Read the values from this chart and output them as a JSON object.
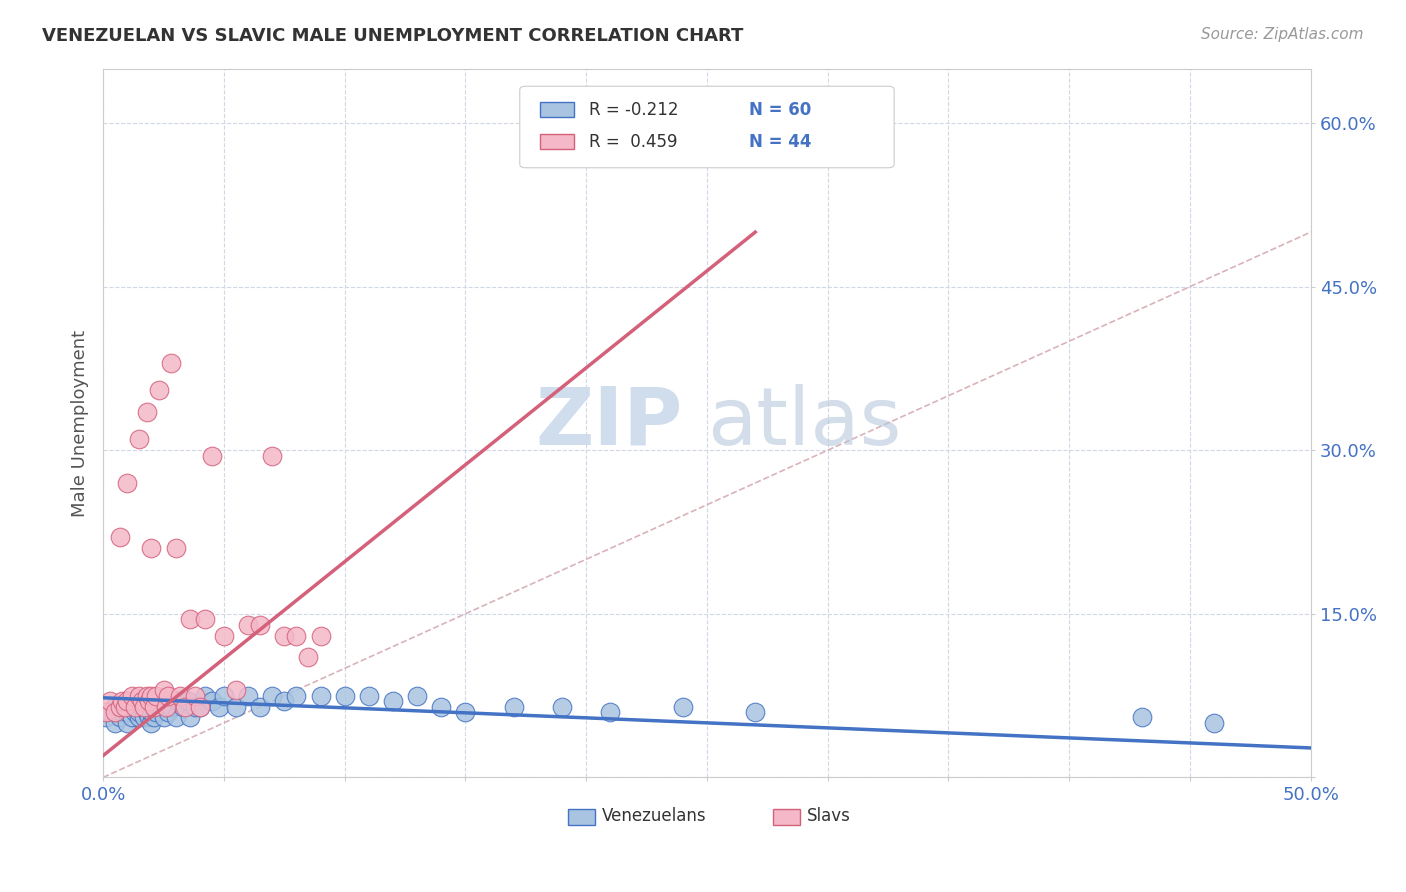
{
  "title": "VENEZUELAN VS SLAVIC MALE UNEMPLOYMENT CORRELATION CHART",
  "source": "Source: ZipAtlas.com",
  "ylabel": "Male Unemployment",
  "xlim": [
    0.0,
    0.5
  ],
  "ylim": [
    0.0,
    0.65
  ],
  "x_ticks": [
    0.0,
    0.05,
    0.1,
    0.15,
    0.2,
    0.25,
    0.3,
    0.35,
    0.4,
    0.45,
    0.5
  ],
  "y_ticks": [
    0.0,
    0.15,
    0.3,
    0.45,
    0.6
  ],
  "venezuelan_color": "#a8c4e0",
  "slavic_color": "#f4b8c8",
  "venezuelan_line_color": "#4472c4",
  "slavic_line_color": "#d4607a",
  "diagonal_color": "#d0a0a8",
  "watermark_zip": "ZIP",
  "watermark_atlas": "atlas",
  "legend_R_venezuelan": "R = -0.212",
  "legend_N_venezuelan": "N = 60",
  "legend_R_slavic": "R =  0.459",
  "legend_N_slavic": "N = 44",
  "venezuelan_x": [
    0.001,
    0.003,
    0.005,
    0.005,
    0.007,
    0.008,
    0.01,
    0.01,
    0.01,
    0.01,
    0.012,
    0.013,
    0.014,
    0.015,
    0.015,
    0.016,
    0.017,
    0.018,
    0.018,
    0.019,
    0.02,
    0.02,
    0.021,
    0.022,
    0.023,
    0.025,
    0.025,
    0.027,
    0.028,
    0.03,
    0.031,
    0.033,
    0.035,
    0.036,
    0.038,
    0.04,
    0.042,
    0.045,
    0.048,
    0.05,
    0.055,
    0.06,
    0.065,
    0.07,
    0.075,
    0.08,
    0.09,
    0.1,
    0.11,
    0.12,
    0.13,
    0.14,
    0.15,
    0.17,
    0.19,
    0.21,
    0.24,
    0.27,
    0.43,
    0.46
  ],
  "venezuelan_y": [
    0.055,
    0.06,
    0.05,
    0.065,
    0.055,
    0.06,
    0.05,
    0.06,
    0.065,
    0.07,
    0.055,
    0.06,
    0.065,
    0.055,
    0.06,
    0.065,
    0.055,
    0.06,
    0.065,
    0.055,
    0.05,
    0.06,
    0.055,
    0.06,
    0.065,
    0.055,
    0.07,
    0.06,
    0.065,
    0.055,
    0.07,
    0.065,
    0.07,
    0.055,
    0.065,
    0.065,
    0.075,
    0.07,
    0.065,
    0.075,
    0.065,
    0.075,
    0.065,
    0.075,
    0.07,
    0.075,
    0.075,
    0.075,
    0.075,
    0.07,
    0.075,
    0.065,
    0.06,
    0.065,
    0.065,
    0.06,
    0.065,
    0.06,
    0.055,
    0.05
  ],
  "slavic_x": [
    0.001,
    0.003,
    0.005,
    0.007,
    0.007,
    0.008,
    0.009,
    0.01,
    0.01,
    0.012,
    0.013,
    0.015,
    0.015,
    0.016,
    0.017,
    0.018,
    0.018,
    0.019,
    0.02,
    0.02,
    0.021,
    0.022,
    0.023,
    0.025,
    0.026,
    0.027,
    0.028,
    0.03,
    0.032,
    0.034,
    0.036,
    0.038,
    0.04,
    0.042,
    0.045,
    0.05,
    0.055,
    0.06,
    0.065,
    0.07,
    0.075,
    0.08,
    0.085,
    0.09
  ],
  "slavic_y": [
    0.06,
    0.07,
    0.06,
    0.065,
    0.22,
    0.07,
    0.065,
    0.07,
    0.27,
    0.075,
    0.065,
    0.075,
    0.31,
    0.07,
    0.065,
    0.075,
    0.335,
    0.07,
    0.075,
    0.21,
    0.065,
    0.075,
    0.355,
    0.08,
    0.065,
    0.075,
    0.38,
    0.21,
    0.075,
    0.065,
    0.145,
    0.075,
    0.065,
    0.145,
    0.295,
    0.13,
    0.08,
    0.14,
    0.14,
    0.295,
    0.13,
    0.13,
    0.11,
    0.13
  ]
}
